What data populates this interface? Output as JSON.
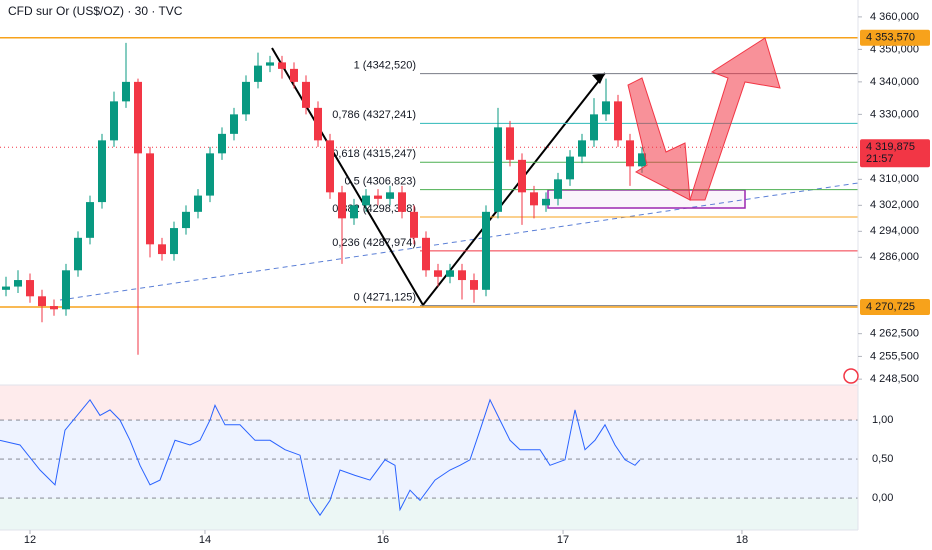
{
  "chart_data": {
    "type": "candlestick",
    "title": "CFD sur Or (US$/OZ) · 30 · TVC",
    "up_color": "#089981",
    "down_color": "#f23645",
    "x": [
      0.5,
      1.5,
      2.5,
      3.5,
      4.5,
      5.5,
      6.5,
      7.5,
      8.5,
      9.5,
      10.5,
      11.5,
      12.5,
      13.5,
      14.5,
      15.5,
      16.5,
      17.5,
      18.5,
      19.5,
      20.5,
      21.5,
      22.5,
      23.5,
      24.5,
      25.5,
      26.5,
      27.5,
      28.5,
      29.5,
      30.5,
      31.5,
      32.5,
      33.5,
      34.5,
      35.5,
      36.5,
      37.5,
      38.5,
      39.5,
      40.5,
      41.5,
      42.5,
      43.5,
      44.5,
      45.5,
      46.5,
      47.5,
      48.5,
      49.5,
      50.5,
      51.5,
      52.5,
      53.5
    ],
    "open": [
      4276,
      4277,
      4279,
      4274,
      4271,
      4270,
      4282,
      4292,
      4303,
      4322,
      4334,
      4340,
      4318,
      4290,
      4287,
      4295,
      4300,
      4305,
      4318,
      4324,
      4330,
      4340,
      4345,
      4346,
      4344,
      4340,
      4332,
      4322,
      4306,
      4298,
      4302,
      4305,
      4304,
      4306,
      4300,
      4292,
      4282,
      4280,
      4282,
      4279,
      4276,
      4300,
      4326,
      4316,
      4306,
      4302,
      4304,
      4310,
      4317,
      4322,
      4330,
      4334,
      4322,
      4314
    ],
    "high": [
      4280,
      4282,
      4281,
      4276,
      4273,
      4284,
      4294,
      4305,
      4324,
      4337,
      4352,
      4341,
      4320,
      4292,
      4297,
      4302,
      4307,
      4320,
      4326,
      4332,
      4342,
      4349,
      4348,
      4348,
      4346,
      4342,
      4334,
      4324,
      4308,
      4304,
      4307,
      4307,
      4308,
      4308,
      4302,
      4294,
      4284,
      4284,
      4284,
      4281,
      4302,
      4332,
      4328,
      4318,
      4308,
      4306,
      4312,
      4319,
      4324,
      4335,
      4341,
      4336,
      4324,
      4320
    ],
    "low": [
      4274,
      4275,
      4272,
      4266,
      4268,
      4268,
      4280,
      4290,
      4301,
      4320,
      4332,
      4256,
      4286,
      4285,
      4285,
      4293,
      4298,
      4303,
      4316,
      4322,
      4328,
      4338,
      4343,
      4341,
      4338,
      4330,
      4320,
      4304,
      4284,
      4296,
      4300,
      4302,
      4302,
      4298,
      4290,
      4280,
      4277,
      4278,
      4273,
      4272,
      4274,
      4298,
      4314,
      4296,
      4298,
      4300,
      4302,
      4308,
      4315,
      4320,
      4328,
      4320,
      4308,
      4312
    ],
    "close": [
      4277,
      4279,
      4274,
      4271,
      4270,
      4282,
      4292,
      4303,
      4322,
      4334,
      4340,
      4318,
      4290,
      4287,
      4295,
      4300,
      4305,
      4318,
      4324,
      4330,
      4340,
      4345,
      4346,
      4344,
      4340,
      4332,
      4322,
      4306,
      4298,
      4302,
      4305,
      4304,
      4306,
      4300,
      4292,
      4282,
      4280,
      4282,
      4279,
      4276,
      4300,
      4326,
      4316,
      4306,
      4302,
      4304,
      4310,
      4317,
      4322,
      4330,
      4334,
      4322,
      4314,
      4318
    ],
    "xlim": [
      0,
      71.5
    ],
    "xticks": [
      {
        "value": 2.5,
        "label": "12"
      },
      {
        "value": 17.08,
        "label": "14"
      },
      {
        "value": 31.92,
        "label": "16"
      },
      {
        "value": 46.92,
        "label": "17"
      },
      {
        "value": 61.83,
        "label": "18"
      }
    ],
    "ylim": [
      4246.7,
      4365.2
    ],
    "yticks": [
      {
        "value": 4360,
        "label": "4 360,000"
      },
      {
        "value": 4350,
        "label": "4 350,000"
      },
      {
        "value": 4340,
        "label": "4 340,000"
      },
      {
        "value": 4330,
        "label": "4 330,000"
      },
      {
        "value": 4310,
        "label": "4 310,000"
      },
      {
        "value": 4302,
        "label": "4 302,000"
      },
      {
        "value": 4294,
        "label": "4 294,000"
      },
      {
        "value": 4286,
        "label": "4 286,000"
      },
      {
        "value": 4262.5,
        "label": "4 262,500"
      },
      {
        "value": 4255.5,
        "label": "4 255,500"
      },
      {
        "value": 4248.5,
        "label": "4 248,500"
      }
    ],
    "price_lines": [
      {
        "value": 4353.57,
        "label": "4 353,570",
        "color": "#f7a21b"
      },
      {
        "value": 4270.725,
        "label": "4 270,725",
        "color": "#f7a21b"
      }
    ],
    "current_price": {
      "value": 4319.875,
      "label": "4 319,875",
      "countdown": "21:57",
      "color": "#f23645"
    },
    "fib_levels": [
      {
        "value": 4342.52,
        "label": "1 (4342,520)",
        "color": "#787b86"
      },
      {
        "value": 4327.241,
        "label": "0,786 (4327,241)",
        "color": "#2eb8b8"
      },
      {
        "value": 4315.247,
        "label": "0,618 (4315,247)",
        "color": "#4caf50"
      },
      {
        "value": 4306.823,
        "label": "0,5 (4306,823)",
        "color": "#4caf50"
      },
      {
        "value": 4298.398,
        "label": "0,382 (4298,398)",
        "color": "#f7a21b"
      },
      {
        "value": 4287.974,
        "label": "0,236 (4287,974)",
        "color": "#f23645"
      },
      {
        "value": 4271.125,
        "label": "0 (4271,125)",
        "color": "#787b86"
      }
    ],
    "indicator": {
      "color": "#2962ff",
      "x": [
        0,
        1.67,
        3.33,
        4.58,
        5.42,
        7.5,
        8.33,
        9.17,
        10,
        10.83,
        11.67,
        12.5,
        13.33,
        14.58,
        15.83,
        16.67,
        17.5,
        17.92,
        18.75,
        20,
        21.25,
        22.5,
        23.75,
        25,
        25.83,
        26.67,
        27.5,
        28.33,
        29.58,
        30.83,
        32.08,
        32.92,
        33.33,
        34.17,
        35,
        36.25,
        37.5,
        38.33,
        39.17,
        40,
        40.83,
        41.67,
        42.5,
        43.33,
        45,
        45.83,
        47.08,
        47.92,
        48.75,
        49.58,
        50.42,
        51.25,
        52.08,
        52.92,
        53.33
      ],
      "values": [
        0.74,
        0.68,
        0.36,
        0.17,
        0.87,
        1.26,
        1.06,
        1.13,
        1.0,
        0.74,
        0.42,
        0.17,
        0.23,
        0.74,
        0.68,
        0.74,
        1.0,
        1.19,
        0.94,
        0.94,
        0.74,
        0.74,
        0.62,
        0.55,
        -0.03,
        -0.22,
        -0.03,
        0.36,
        0.29,
        0.23,
        0.49,
        0.42,
        -0.15,
        0.1,
        -0.03,
        0.23,
        0.36,
        0.42,
        0.49,
        0.87,
        1.26,
        1.0,
        0.74,
        0.62,
        0.62,
        0.42,
        0.49,
        1.13,
        0.62,
        0.74,
        0.94,
        0.68,
        0.49,
        0.42,
        0.49
      ],
      "ylim": [
        -0.41,
        1.45
      ],
      "yticks": [
        {
          "value": 1,
          "label": "1,00"
        },
        {
          "value": 0.5,
          "label": "0,50"
        },
        {
          "value": 0,
          "label": "0,00"
        }
      ]
    }
  }
}
